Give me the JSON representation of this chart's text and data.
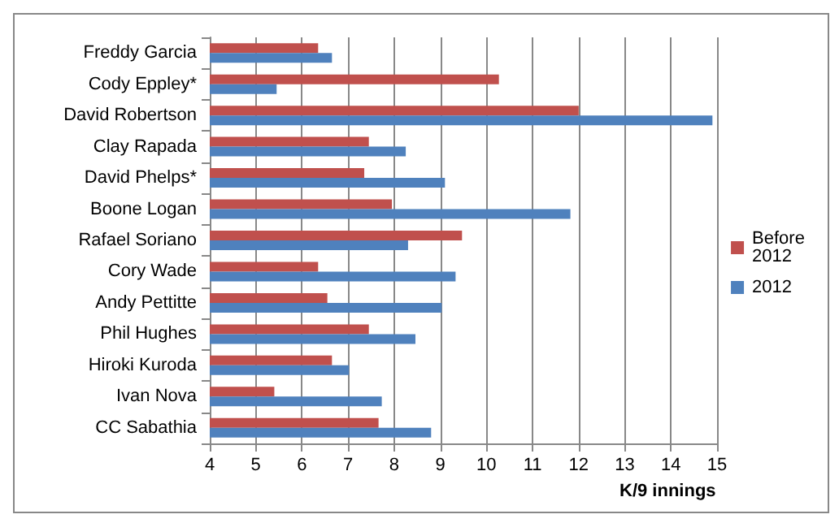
{
  "chart_data": {
    "type": "bar",
    "orientation": "horizontal",
    "xlabel": "K/9 innings",
    "categories": [
      "Freddy Garcia",
      "Cody Eppley*",
      "David Robertson",
      "Clay Rapada",
      "David Phelps*",
      "Boone Logan",
      "Rafael Soriano",
      "Cory Wade",
      "Andy Pettitte",
      "Phil Hughes",
      "Hiroki Kuroda",
      "Ivan Nova",
      "CC Sabathia"
    ],
    "series": [
      {
        "name": "Before 2012",
        "color": "#c0504d",
        "values": [
          6.35,
          10.27,
          12.0,
          7.45,
          7.35,
          7.95,
          9.47,
          6.35,
          6.55,
          7.45,
          6.65,
          5.4,
          7.66
        ]
      },
      {
        "name": "2012",
        "color": "#4f81bd",
        "values": [
          6.65,
          5.45,
          14.9,
          8.25,
          9.1,
          11.82,
          8.3,
          9.33,
          9.03,
          8.46,
          7.02,
          7.73,
          8.8
        ]
      }
    ],
    "xlim": [
      4,
      15
    ],
    "xticks": [
      4,
      5,
      6,
      7,
      8,
      9,
      10,
      11,
      12,
      13,
      14,
      15
    ],
    "grid": "x",
    "legend": "right"
  }
}
